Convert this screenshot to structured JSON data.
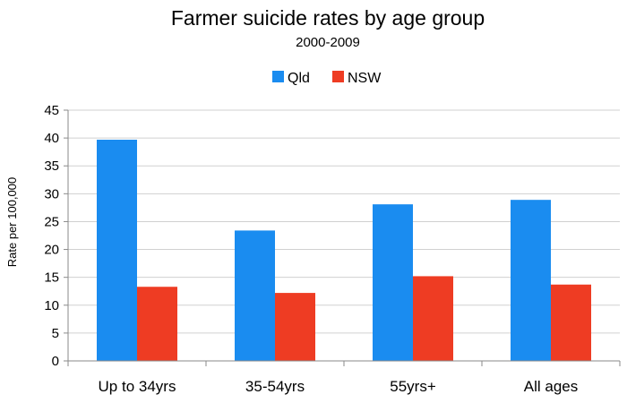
{
  "chart_data": {
    "type": "bar",
    "title": "Farmer suicide rates by age group",
    "subtitle": "2000-2009",
    "xlabel": "",
    "ylabel": "Rate per 100,000",
    "categories": [
      "Up to 34yrs",
      "35-54yrs",
      "55yrs+",
      "All ages"
    ],
    "series": [
      {
        "name": "Qld",
        "color": "#1a8cf0",
        "values": [
          39.7,
          23.4,
          28.1,
          28.9
        ]
      },
      {
        "name": "NSW",
        "color": "#ee3c23",
        "values": [
          13.3,
          12.2,
          15.2,
          13.7
        ]
      }
    ],
    "ylim": [
      0,
      45
    ],
    "yticks": [
      "0",
      "5",
      "10",
      "15",
      "20",
      "25",
      "30",
      "35",
      "40",
      "45"
    ],
    "grid": true,
    "legend_position": "top"
  }
}
